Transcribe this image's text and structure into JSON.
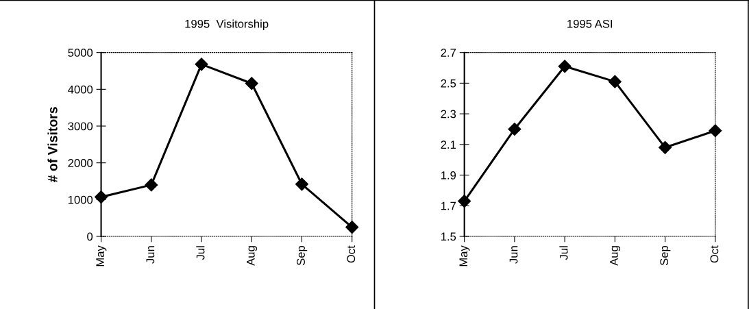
{
  "chart_data": [
    {
      "type": "line",
      "title": "1995  Visitorship",
      "ylabel": "# of Visitors",
      "categories": [
        "May",
        "Jun",
        "Jul",
        "Aug",
        "Sep",
        "Oct"
      ],
      "series": [
        {
          "color": "#000000",
          "values": [
            1070,
            1400,
            4680,
            4160,
            1420,
            250
          ]
        }
      ],
      "ylim": [
        0,
        5000
      ],
      "yticks": [
        0,
        1000,
        2000,
        3000,
        4000,
        5000
      ],
      "marker": "diamond",
      "line_style": "solid",
      "grid": false,
      "legend": false
    },
    {
      "type": "line",
      "title": "1995 ASI",
      "categories": [
        "May",
        "Jun",
        "Jul",
        "Aug",
        "Sep",
        "Oct"
      ],
      "series": [
        {
          "color": "#000000",
          "values": [
            1.73,
            2.2,
            2.61,
            2.51,
            2.08,
            2.19
          ]
        }
      ],
      "ylim": [
        1.5,
        2.7
      ],
      "yticks": [
        1.5,
        1.7,
        1.9,
        2.1,
        2.3,
        2.5,
        2.7
      ],
      "marker": "diamond",
      "line_style": "solid",
      "grid": false,
      "legend": false
    }
  ]
}
